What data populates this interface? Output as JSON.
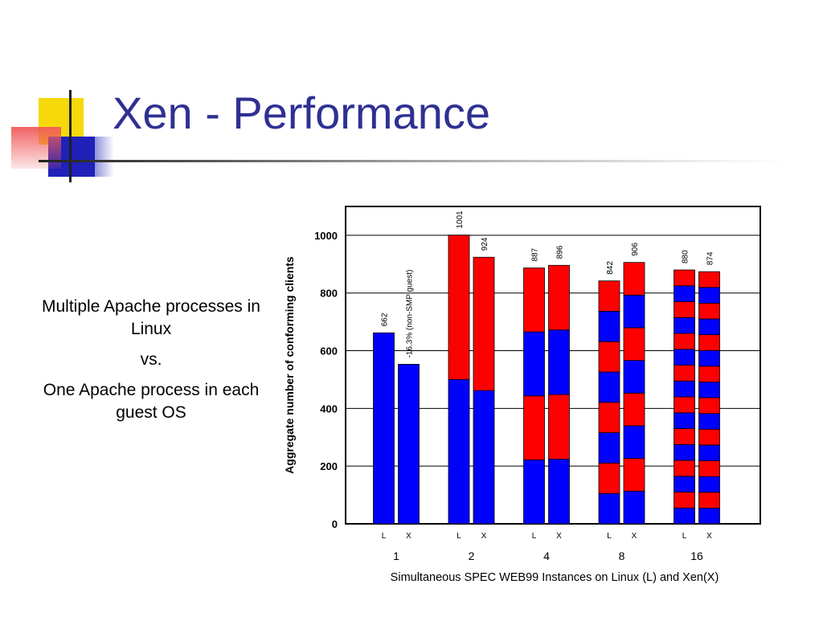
{
  "slide": {
    "title": "Xen - Performance",
    "side_text": [
      "Multiple Apache processes in Linux",
      "vs.",
      "One Apache process in each guest OS"
    ]
  },
  "colors": {
    "title": "#2e3192",
    "bar_blue": "#0000ff",
    "bar_red": "#ff0000"
  },
  "chart_data": {
    "type": "bar",
    "stacked": true,
    "title": "",
    "ylabel": "Aggregate number of conforming clients",
    "xlabel": "Simultaneous SPEC WEB99 Instances on Linux (L) and Xen(X)",
    "ylim": [
      0,
      1100
    ],
    "yticks": [
      0,
      200,
      400,
      600,
      800,
      1000
    ],
    "grid": true,
    "groups": [
      "1",
      "2",
      "4",
      "8",
      "16"
    ],
    "bar_labels": [
      "L",
      "X"
    ],
    "bars": [
      {
        "group": "1",
        "label": "L",
        "total": 662,
        "segments": 1
      },
      {
        "group": "1",
        "label": "X",
        "total": 553,
        "segments": 1,
        "annotation": "-16.3% (non-SMP guest)"
      },
      {
        "group": "2",
        "label": "L",
        "total": 1001,
        "segments": 2
      },
      {
        "group": "2",
        "label": "X",
        "total": 924,
        "segments": 2
      },
      {
        "group": "4",
        "label": "L",
        "total": 887,
        "segments": 4
      },
      {
        "group": "4",
        "label": "X",
        "total": 896,
        "segments": 4
      },
      {
        "group": "8",
        "label": "L",
        "total": 842,
        "segments": 8
      },
      {
        "group": "8",
        "label": "X",
        "total": 906,
        "segments": 8
      },
      {
        "group": "16",
        "label": "L",
        "total": 880,
        "segments": 16
      },
      {
        "group": "16",
        "label": "X",
        "total": 874,
        "segments": 16
      }
    ]
  }
}
